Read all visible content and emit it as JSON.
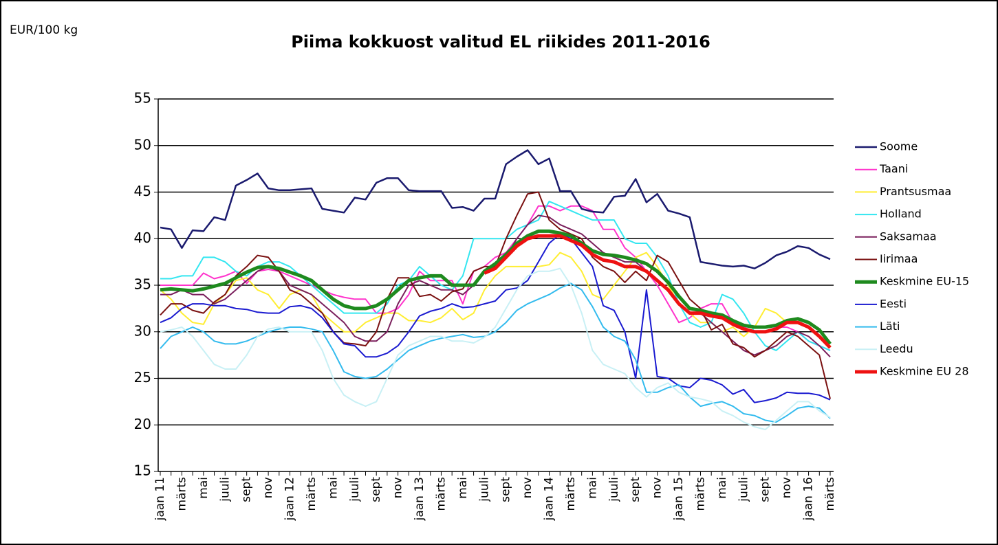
{
  "chart_data": {
    "type": "line",
    "title": "Piima kokkuost valitud EL riikides 2011-2016",
    "y_label": "EUR/100 kg",
    "categories": [
      "jaan 11",
      null,
      "märts",
      null,
      "mai",
      null,
      "juuli",
      null,
      "sept",
      null,
      "nov",
      null,
      "jaan 12",
      null,
      "märts",
      null,
      "mai",
      null,
      "juuli",
      null,
      "sept",
      null,
      "nov",
      null,
      "jaan 13",
      null,
      "märts",
      null,
      "mai",
      null,
      "juuli",
      null,
      "sept",
      null,
      "nov",
      null,
      "jaan 14",
      null,
      "märts",
      null,
      "mai",
      null,
      "juuli",
      null,
      "sept",
      null,
      "nov",
      null,
      "jaan 15",
      null,
      "märts",
      null,
      "mai",
      null,
      "juuli",
      null,
      "sept",
      null,
      "nov",
      null,
      "jaan 16",
      null,
      "märts"
    ],
    "ylim": [
      15,
      55
    ],
    "yticks": [
      15,
      20,
      25,
      30,
      35,
      40,
      45,
      50,
      55
    ],
    "grid": true,
    "legend": "right",
    "series": [
      {
        "name": "Soome",
        "color": "#1a1a6e",
        "line_width": 2.5,
        "values": [
          41.2,
          41,
          39,
          40.9,
          40.8,
          42.3,
          42,
          45.7,
          46.3,
          47,
          45.4,
          45.2,
          45.2,
          45.3,
          45.4,
          43.2,
          43,
          42.8,
          44.4,
          44.2,
          46,
          46.5,
          46.5,
          45.2,
          45.1,
          45.1,
          45.1,
          43.3,
          43.4,
          43,
          44.3,
          44.3,
          48,
          48.8,
          49.5,
          48,
          48.6,
          45.1,
          45.1,
          43.2,
          42.9,
          42.8,
          44.5,
          44.6,
          46.4,
          43.9,
          44.8,
          43,
          42.7,
          42.3,
          37.5,
          37.3,
          37.1,
          37,
          37.1,
          36.8,
          37.4,
          38.2,
          38.6,
          39.2,
          39,
          38.3,
          37.8
        ]
      },
      {
        "name": "Taani",
        "color": "#ff33cc",
        "line_width": 2,
        "values": [
          35,
          35,
          35,
          35,
          36.3,
          35.7,
          36,
          36.5,
          35.2,
          36.5,
          36.7,
          36.5,
          36,
          35.5,
          35,
          34.5,
          34,
          33.7,
          33.5,
          33.5,
          32,
          32,
          32.5,
          34,
          36.5,
          35.5,
          35.5,
          35.5,
          33,
          36.5,
          37,
          38,
          38.5,
          40,
          41.5,
          43.5,
          43.5,
          43,
          43.5,
          43.5,
          43,
          41,
          41,
          39,
          38,
          36.5,
          35,
          33,
          31,
          31.5,
          32.5,
          33,
          33,
          31,
          30.5,
          30,
          30,
          30.5,
          30.5,
          30,
          29,
          28.5,
          28
        ]
      },
      {
        "name": "Prantsusmaa",
        "color": "#ffee33",
        "line_width": 2,
        "values": [
          34.5,
          33.5,
          32,
          31,
          30.8,
          33,
          34,
          35.5,
          35.8,
          34.5,
          34,
          32.5,
          34,
          34.5,
          34,
          32,
          31,
          30,
          30,
          31,
          31.5,
          32,
          32,
          31.2,
          31.2,
          31,
          31.5,
          32.5,
          31.3,
          32,
          34.5,
          36,
          37,
          37,
          37,
          37,
          37.2,
          38.5,
          38,
          36.5,
          34,
          33.5,
          35,
          36.5,
          38,
          38.5,
          37,
          35,
          33,
          32,
          31,
          31,
          30,
          30.5,
          29.5,
          30.5,
          32.5,
          32,
          31,
          31,
          30.5,
          29.5,
          28.5
        ]
      },
      {
        "name": "Holland",
        "color": "#33e6f0",
        "line_width": 2,
        "values": [
          35.7,
          35.7,
          36,
          36,
          38,
          38,
          37.5,
          36.5,
          36,
          37,
          37.5,
          37.5,
          37,
          36,
          35,
          34,
          33,
          32,
          32,
          32,
          32,
          33,
          35,
          35.5,
          37,
          36,
          35,
          34.5,
          36,
          40,
          40,
          40,
          40,
          41,
          41.5,
          42,
          44,
          43.5,
          43,
          42.5,
          42,
          42,
          42,
          40,
          39.5,
          39.5,
          38,
          36,
          33,
          31,
          30.5,
          31,
          34,
          33.5,
          32,
          30,
          28.5,
          28,
          29,
          30,
          29,
          28.5,
          28
        ]
      },
      {
        "name": "Saksamaa",
        "color": "#7a1f5c",
        "line_width": 2,
        "values": [
          34,
          34,
          34.5,
          34,
          34,
          33,
          33.5,
          34.5,
          35.5,
          36.5,
          37,
          36.5,
          35,
          34.5,
          34,
          33,
          32,
          31,
          29.5,
          29,
          29,
          30,
          33,
          35,
          35.5,
          35,
          34.5,
          34.5,
          34,
          35,
          36.5,
          37,
          38,
          40,
          41.5,
          42.5,
          42.3,
          41.5,
          41,
          40.5,
          39.5,
          38.5,
          38,
          37.5,
          37.5,
          36.5,
          35.5,
          34.5,
          33,
          32,
          32,
          31,
          30,
          29,
          28,
          27.5,
          28,
          28.5,
          29.5,
          30,
          29.5,
          28.5,
          27.3
        ]
      },
      {
        "name": "Iirimaa",
        "color": "#7a1010",
        "line_width": 2,
        "values": [
          31.8,
          33,
          33,
          32.3,
          32,
          33.2,
          34,
          36,
          37,
          38.2,
          38,
          36.5,
          34.5,
          34,
          33,
          32,
          30,
          28.8,
          28.7,
          28.5,
          30,
          33.5,
          35.8,
          35.8,
          33.8,
          34,
          33.3,
          34.3,
          34.6,
          36.5,
          37,
          37,
          40,
          42.5,
          44.8,
          45,
          42,
          41,
          40.5,
          40,
          38,
          37,
          36.5,
          35.3,
          36.5,
          35.5,
          38.2,
          37.5,
          35.5,
          33.5,
          32.5,
          30.2,
          30.8,
          28.7,
          28.3,
          27.3,
          28,
          29,
          30,
          29.5,
          28.5,
          27.5,
          22.8
        ]
      },
      {
        "name": "Keskmine EU-15",
        "color": "#1e8a1e",
        "line_width": 5,
        "values": [
          34.5,
          34.6,
          34.5,
          34.4,
          34.6,
          34.9,
          35.2,
          35.8,
          36.4,
          36.9,
          37,
          36.8,
          36.4,
          36,
          35.5,
          34.5,
          33.5,
          32.8,
          32.5,
          32.5,
          32.8,
          33.5,
          34.5,
          35.5,
          35.8,
          36,
          36,
          35,
          35,
          35,
          36.5,
          37.3,
          38.3,
          39.5,
          40.3,
          40.8,
          40.8,
          40.6,
          40.3,
          39.5,
          38.7,
          38.3,
          38.2,
          38,
          37.7,
          37.3,
          36.5,
          35.3,
          33.8,
          32.5,
          32.3,
          32,
          31.8,
          31.2,
          30.7,
          30.5,
          30.5,
          30.7,
          31.2,
          31.4,
          31,
          30.2,
          28.7
        ]
      },
      {
        "name": "Eesti",
        "color": "#1a1ad0",
        "line_width": 2,
        "values": [
          31,
          31.5,
          32.5,
          33,
          33,
          32.8,
          32.8,
          32.5,
          32.4,
          32.1,
          32,
          32,
          32.7,
          32.8,
          32.5,
          31.5,
          30,
          28.7,
          28.5,
          27.3,
          27.3,
          27.7,
          28.5,
          30,
          31.7,
          32.2,
          32.5,
          33,
          32.6,
          32.7,
          33,
          33.3,
          34.5,
          34.7,
          35.5,
          37.5,
          39.5,
          40.5,
          40,
          38.5,
          37,
          32.8,
          32.3,
          30,
          25,
          34.5,
          25.2,
          25,
          24.2,
          24,
          25,
          24.8,
          24.3,
          23.3,
          23.8,
          22.4,
          22.6,
          22.9,
          23.5,
          23.4,
          23.4,
          23.2,
          22.7
        ]
      },
      {
        "name": "Läti",
        "color": "#33bbee",
        "line_width": 2,
        "values": [
          28.2,
          29.5,
          30,
          30.5,
          30,
          29,
          28.7,
          28.7,
          29,
          29.5,
          30,
          30.3,
          30.5,
          30.5,
          30.3,
          30,
          28,
          25.7,
          25.2,
          25,
          25.2,
          26,
          27,
          28,
          28.5,
          29,
          29.3,
          29.5,
          29.7,
          29.4,
          29.5,
          30,
          31,
          32.3,
          33,
          33.5,
          34,
          34.7,
          35.2,
          34.5,
          32.7,
          30.5,
          29.5,
          29,
          27,
          23.5,
          23.5,
          24,
          24.3,
          23,
          22,
          22.3,
          22.5,
          22,
          21.2,
          21,
          20.5,
          20.3,
          21,
          21.8,
          22,
          21.8,
          20.7
        ]
      },
      {
        "name": "Leedu",
        "color": "#c8f0f5",
        "line_width": 2,
        "values": [
          30,
          30.2,
          30.5,
          29.5,
          28,
          26.5,
          26,
          26,
          27.5,
          29.5,
          30.3,
          30.5,
          30,
          30,
          30,
          28,
          25,
          23.2,
          22.5,
          22,
          22.5,
          25,
          27.5,
          28.5,
          29,
          29.5,
          29.5,
          29,
          29,
          28.8,
          29.4,
          30.5,
          32.5,
          34.5,
          36,
          36.5,
          36.5,
          36.8,
          35,
          32,
          28,
          26.5,
          26,
          25.5,
          24,
          23,
          24,
          24.5,
          23.5,
          23,
          22.8,
          22.5,
          21.5,
          21,
          20.3,
          19.8,
          19.5,
          20.5,
          21.5,
          22.5,
          22.5,
          21.5,
          20.8
        ]
      },
      {
        "name": "Keskmine EU 28",
        "color": "#ee1111",
        "line_width": 5,
        "values": [
          null,
          null,
          null,
          null,
          null,
          null,
          null,
          null,
          null,
          null,
          null,
          null,
          null,
          null,
          null,
          null,
          null,
          null,
          null,
          null,
          null,
          null,
          null,
          null,
          null,
          null,
          null,
          null,
          null,
          null,
          36.3,
          36.8,
          38,
          39.2,
          40,
          40.3,
          40.3,
          40.3,
          39.8,
          39.3,
          38.3,
          37.7,
          37.5,
          37,
          37,
          36.5,
          35.5,
          34.5,
          33,
          32,
          32,
          31.7,
          31.5,
          30.8,
          30.3,
          30,
          30,
          30.3,
          31,
          31,
          30.5,
          29.5,
          28.3
        ]
      }
    ]
  }
}
